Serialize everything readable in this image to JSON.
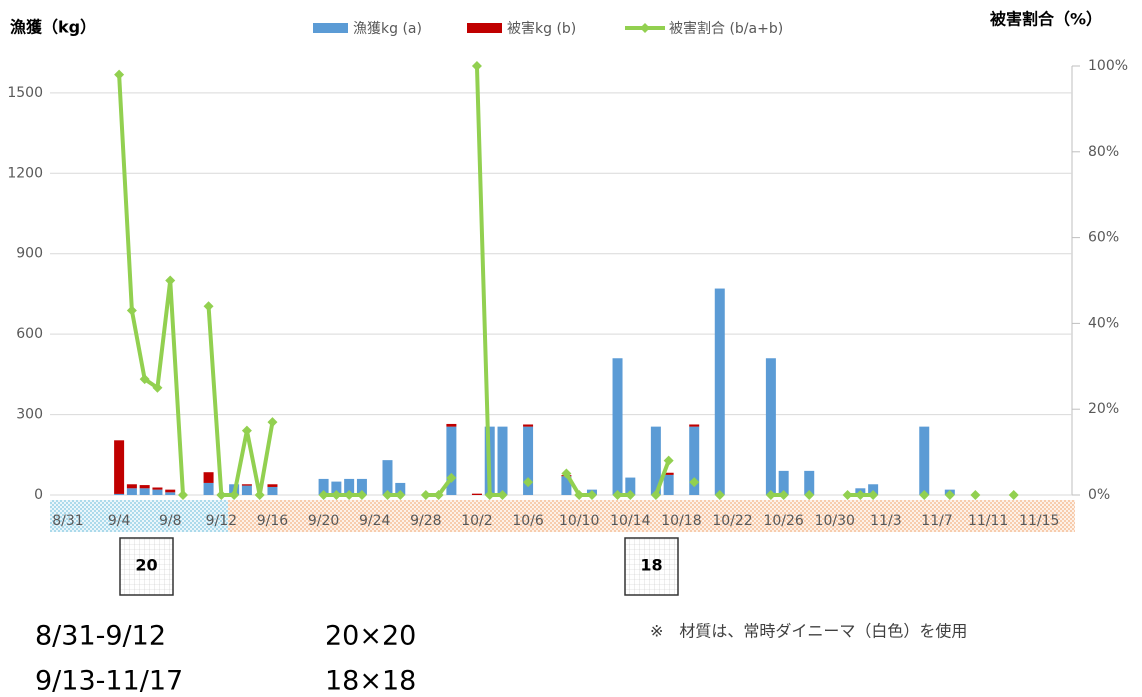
{
  "chart_data": {
    "type": "bar_line",
    "y_axis_title": "漁獲（kg）",
    "y2_axis_title": "被害割合（%）",
    "categories": [
      "8/31",
      null,
      null,
      null,
      "9/4",
      null,
      null,
      null,
      "9/8",
      null,
      null,
      null,
      "9/12",
      null,
      null,
      null,
      "9/16",
      null,
      null,
      null,
      "9/20",
      null,
      null,
      null,
      "9/24",
      null,
      null,
      null,
      "9/28",
      null,
      null,
      null,
      "10/2",
      null,
      null,
      null,
      "10/6",
      null,
      null,
      null,
      "10/10",
      null,
      null,
      null,
      "10/14",
      null,
      null,
      null,
      "10/18",
      null,
      null,
      null,
      "10/22",
      null,
      null,
      null,
      "10/26",
      null,
      null,
      null,
      "10/30",
      null,
      null,
      null,
      "11/3",
      null,
      null,
      null,
      "11/7",
      null,
      null,
      null,
      "11/11",
      null,
      null,
      null,
      "11/15",
      null,
      null
    ],
    "series": [
      {
        "name": "漁獲kg (a)",
        "type": "bar",
        "color": "#5b9bd5",
        "values": [
          null,
          null,
          null,
          null,
          4,
          25,
          25,
          20,
          10,
          null,
          null,
          45,
          null,
          40,
          35,
          null,
          30,
          null,
          null,
          null,
          60,
          50,
          60,
          60,
          null,
          130,
          45,
          null,
          null,
          null,
          255,
          null,
          0,
          255,
          255,
          null,
          255,
          null,
          null,
          70,
          null,
          20,
          null,
          510,
          65,
          null,
          255,
          75,
          null,
          255,
          null,
          770,
          null,
          null,
          null,
          510,
          90,
          null,
          90,
          null,
          null,
          null,
          25,
          40,
          null,
          null,
          null,
          255,
          null,
          20,
          null,
          null,
          null,
          null,
          null,
          null,
          null,
          null,
          null
        ]
      },
      {
        "name": "被害kg (b)",
        "type": "bar",
        "color": "#c00000",
        "values": [
          null,
          null,
          null,
          null,
          200,
          15,
          12,
          8,
          10,
          null,
          null,
          40,
          null,
          null,
          5,
          null,
          10,
          null,
          null,
          null,
          null,
          null,
          null,
          null,
          null,
          null,
          null,
          null,
          null,
          null,
          10,
          null,
          5,
          null,
          null,
          null,
          8,
          null,
          null,
          4,
          null,
          null,
          null,
          null,
          null,
          null,
          null,
          8,
          null,
          8,
          null,
          null,
          null,
          null,
          null,
          null,
          null,
          null,
          null,
          null,
          null,
          null,
          null,
          null,
          null,
          null,
          null,
          null,
          null,
          null,
          null,
          null,
          null,
          null,
          null,
          null,
          null,
          null,
          null
        ]
      },
      {
        "name": "被害割合 (b/a+b)",
        "type": "line",
        "axis": "y2",
        "color": "#92d050",
        "values": [
          null,
          null,
          null,
          null,
          98,
          43,
          27,
          25,
          50,
          0,
          null,
          44,
          0,
          0,
          15,
          0,
          17,
          null,
          null,
          null,
          0,
          0,
          0,
          0,
          null,
          0,
          0,
          null,
          0,
          0,
          4,
          null,
          100,
          0,
          0,
          null,
          3,
          null,
          null,
          5,
          0,
          0,
          null,
          0,
          0,
          null,
          0,
          8,
          null,
          3,
          null,
          0,
          null,
          null,
          null,
          0,
          0,
          null,
          0,
          null,
          null,
          0,
          0,
          0,
          null,
          null,
          null,
          0,
          null,
          0,
          null,
          0,
          null,
          null,
          0,
          null,
          null,
          null,
          null
        ]
      }
    ],
    "ylim": [
      0,
      1600
    ],
    "yticks": [
      0,
      300,
      600,
      900,
      1200,
      1500
    ],
    "y2lim": [
      0,
      100
    ],
    "y2ticks": [
      {
        "value": 0,
        "label": "0%"
      },
      {
        "value": 20,
        "label": "20%"
      },
      {
        "value": 40,
        "label": "40%"
      },
      {
        "value": 60,
        "label": "60%"
      },
      {
        "value": 80,
        "label": "80%"
      },
      {
        "value": 100,
        "label": "100%"
      }
    ],
    "grid": true,
    "legend": "top",
    "mesh_boxes": [
      "20",
      "18"
    ],
    "periods": [
      {
        "range": "8/31-9/12",
        "mesh": "20×20"
      },
      {
        "range": "9/13-11/17",
        "mesh": "18×18"
      }
    ],
    "note": "※　材質は、常時ダイニーマ（白色）を使用"
  }
}
